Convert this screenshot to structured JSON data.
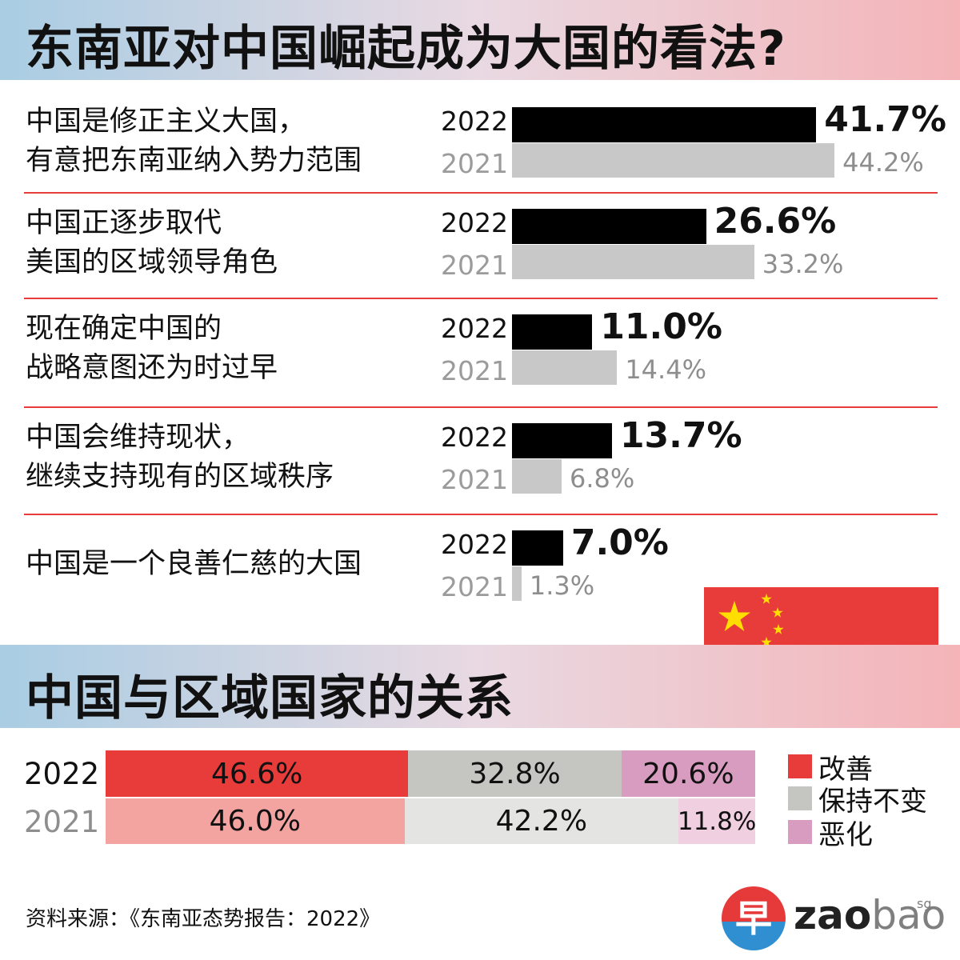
{
  "title": "东南亚对中国崛起成为大国的看法?",
  "subtitle": "中国与区域国家的关系",
  "chart_data": [
    {
      "type": "bar",
      "orientation": "horizontal",
      "categories": [
        [
          "中国是修正主义大国，",
          "有意把东南亚纳入势力范围"
        ],
        [
          "中国正逐步取代",
          "美国的区域领导角色"
        ],
        [
          "现在确定中国的",
          "战略意图还为时过早"
        ],
        [
          "中国会维持现状，",
          "继续支持现有的区域秩序"
        ],
        [
          "中国是一个良善仁慈的大国"
        ]
      ],
      "series": [
        {
          "name": "2022",
          "color": "#000000",
          "values": [
            41.7,
            26.6,
            11.0,
            13.7,
            7.0
          ],
          "labels": [
            "41.7%",
            "26.6%",
            "11.0%",
            "13.7%",
            "7.0%"
          ]
        },
        {
          "name": "2021",
          "color": "#c8c8c8",
          "values": [
            44.2,
            33.2,
            14.4,
            6.8,
            1.3
          ],
          "labels": [
            "44.2%",
            "33.2%",
            "14.4%",
            "6.8%",
            "1.3%"
          ]
        }
      ],
      "unit": "%"
    },
    {
      "type": "bar",
      "orientation": "horizontal",
      "stacked": true,
      "categories": [
        "2022",
        "2021"
      ],
      "series": [
        {
          "name": "改善",
          "color_2022": "#e83c3b",
          "color_2021": "#f3a3a0",
          "values": [
            46.6,
            46.0
          ],
          "labels": [
            "46.6%",
            "46.0%"
          ]
        },
        {
          "name": "保持不变",
          "color_2022": "#c5c5c1",
          "color_2021": "#e4e4e2",
          "values": [
            32.8,
            42.2
          ],
          "labels": [
            "32.8%",
            "42.2%"
          ]
        },
        {
          "name": "恶化",
          "color_2022": "#d89cc0",
          "color_2021": "#f0cfe0",
          "values": [
            20.6,
            11.8
          ],
          "labels": [
            "20.6%",
            "11.8%"
          ]
        }
      ],
      "legend": "right",
      "unit": "%"
    }
  ],
  "source": "资料来源：《东南亚态势报告：2022》",
  "logo": {
    "glyph": "早",
    "zao": "zao",
    "bao": "bao",
    "sg": "sg"
  }
}
